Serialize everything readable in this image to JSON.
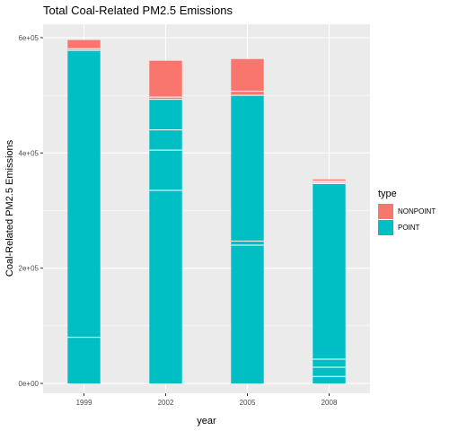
{
  "chart_data": {
    "type": "bar",
    "stacked": true,
    "title": "Total Coal-Related PM2.5 Emissions",
    "xlabel": "year",
    "ylabel": "Coal-Related PM2.5 Emissions",
    "categories": [
      "1999",
      "2002",
      "2005",
      "2008"
    ],
    "ylim": [
      0,
      600000
    ],
    "yticks": [
      0,
      200000,
      400000,
      600000
    ],
    "ytick_labels": [
      "0e+00",
      "2e+05",
      "4e+05",
      "6e+05"
    ],
    "grid": true,
    "legend": {
      "title": "type",
      "position": "right",
      "entries": [
        "NONPOINT",
        "POINT"
      ]
    },
    "series": [
      {
        "name": "POINT",
        "color": "#00bfc4",
        "values": [
          578000,
          493000,
          500000,
          347000
        ]
      },
      {
        "name": "NONPOINT",
        "color": "#f8766d",
        "values": [
          18000,
          67000,
          63000,
          7000
        ]
      }
    ],
    "point_segment_boundaries": [
      [
        80000
      ],
      [
        335000,
        405000,
        440000
      ],
      [
        240000,
        247000
      ],
      [
        12000,
        28000,
        42000
      ]
    ],
    "nonpoint_segment_boundaries": [
      [
        581000
      ],
      [
        497000
      ],
      [
        507000
      ],
      [
        349000,
        351000
      ]
    ]
  }
}
